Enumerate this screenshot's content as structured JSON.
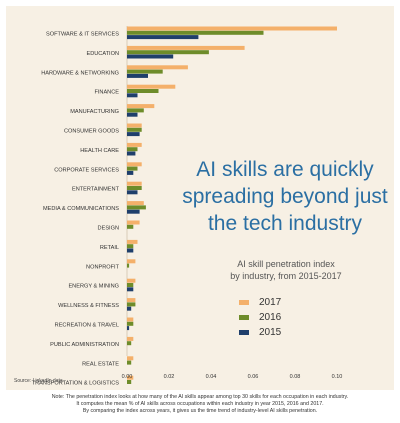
{
  "chart_data": {
    "type": "bar",
    "orientation": "horizontal",
    "title": "AI skills are quickly spreading beyond just the tech industry",
    "title_lines": [
      "AI skills are quickly",
      "spreading beyond just",
      "the tech industry"
    ],
    "subtitle": "AI skill penetration index by industry, from 2015-2017",
    "subtitle_lines": [
      "AI skill penetration index",
      "by industry, from 2015-2017"
    ],
    "xlim": [
      0,
      0.11
    ],
    "xticks": [
      "0.00",
      "0.02",
      "0.04",
      "0.06",
      "0.08",
      "0.10"
    ],
    "xtick_values": [
      0,
      0.02,
      0.04,
      0.06,
      0.08,
      0.1
    ],
    "grid": false,
    "legend_position": "right",
    "categories": [
      "SOFTWARE & IT SERVICES",
      "EDUCATION",
      "HARDWARE & NETWORKING",
      "FINANCE",
      "MANUFACTURING",
      "CONSUMER GOODS",
      "HEALTH CARE",
      "CORPORATE SERVICES",
      "ENTERTAINMENT",
      "MEDIA & COMMUNICATIONS",
      "DESIGN",
      "RETAIL",
      "NONPROFIT",
      "ENERGY & MINING",
      "WELLNESS & FITNESS",
      "RECREATION & TRAVEL",
      "PUBLIC ADMINISTRATION",
      "REAL ESTATE",
      "TRANSPORTATION & LOGISTICS"
    ],
    "series": [
      {
        "name": "2017",
        "color": "#f4b06a",
        "values": [
          0.1,
          0.056,
          0.029,
          0.023,
          0.013,
          0.007,
          0.007,
          0.007,
          0.007,
          0.008,
          0.006,
          0.005,
          0.004,
          0.004,
          0.004,
          0.003,
          0.003,
          0.003,
          0.003
        ]
      },
      {
        "name": "2016",
        "color": "#6e8c2a",
        "values": [
          0.065,
          0.039,
          0.017,
          0.015,
          0.008,
          0.007,
          0.005,
          0.005,
          0.007,
          0.009,
          0.003,
          0.003,
          0.001,
          0.003,
          0.004,
          0.003,
          0.002,
          0.002,
          0.002
        ]
      },
      {
        "name": "2015",
        "color": "#1f3f6b",
        "values": [
          0.034,
          0.022,
          0.01,
          0.005,
          0.005,
          0.006,
          0.004,
          0.003,
          0.005,
          0.006,
          0.0,
          0.003,
          0.0,
          0.003,
          0.002,
          0.001,
          0.0,
          0.0,
          0.0
        ]
      }
    ]
  },
  "source": "Source: LinkedIn data.",
  "note_lines": [
    "Note: The penetration index looks at how many of the AI skills appear among top 30 skills for each occupation in each industry.",
    "It computes the mean % of AI skills across occupations within each industry in year 2015, 2016 and 2017.",
    "By comparing the index across years, it gives us the time trend of industry-level AI skills penetration."
  ]
}
